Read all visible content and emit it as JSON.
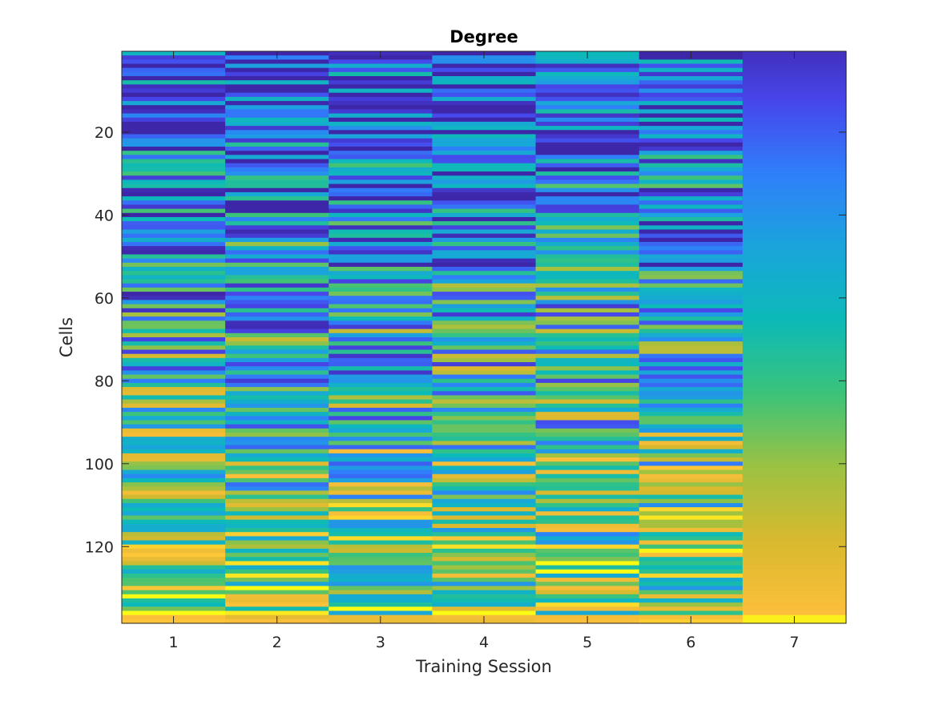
{
  "chart_data": {
    "type": "heatmap",
    "title": "Degree",
    "xlabel": "Training Session",
    "ylabel": "Cells",
    "x_categories": [
      "1",
      "2",
      "3",
      "4",
      "5",
      "6",
      "7"
    ],
    "y_ticks": [
      20,
      40,
      60,
      80,
      100,
      120
    ],
    "y_range": [
      0.5,
      138.5
    ],
    "y_reversed": true,
    "rows": 138,
    "colormap": "parula",
    "colormap_stops": [
      "#3e26a8",
      "#4746eb",
      "#2f7ffa",
      "#1aa5db",
      "#0cbab8",
      "#3bc37a",
      "#9cc242",
      "#d8b92e",
      "#fdbf3b",
      "#f9fb15"
    ],
    "value_range": [
      0,
      1
    ],
    "series_generation": "column 7 is sorted ascending top to bottom; columns 1-6 are noisy per-row values",
    "grid": false,
    "legend": "none"
  }
}
